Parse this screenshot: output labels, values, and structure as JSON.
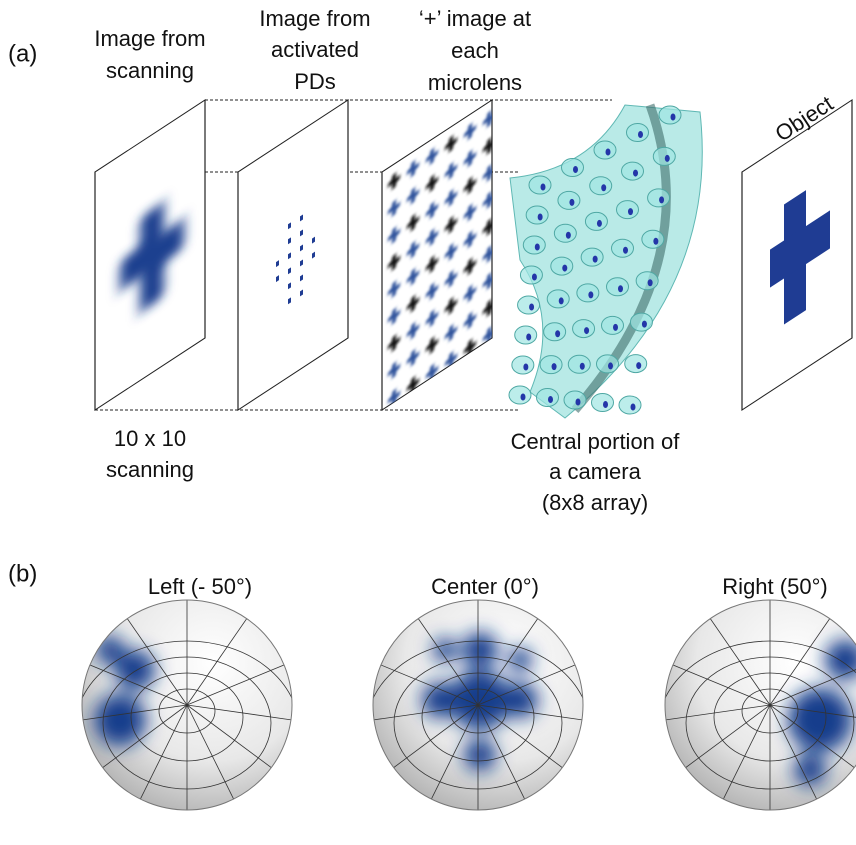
{
  "panel_a": {
    "label": "(a)",
    "captions_top": [
      {
        "lines": [
          "Image from",
          "scanning"
        ]
      },
      {
        "lines": [
          "Image from",
          "activated",
          "PDs"
        ]
      },
      {
        "lines": [
          "‘+’ image at",
          "each",
          "microlens"
        ]
      }
    ],
    "object_label": "Object",
    "captions_bottom": [
      {
        "lines": [
          "10 x 10",
          "scanning"
        ]
      },
      {
        "lines": [
          "Central portion of",
          "a camera",
          "(8x8 array)"
        ]
      }
    ]
  },
  "panel_b": {
    "label": "(b)",
    "views": [
      "Left (- 50°)",
      "Center (0°)",
      "Right (50°)"
    ]
  }
}
